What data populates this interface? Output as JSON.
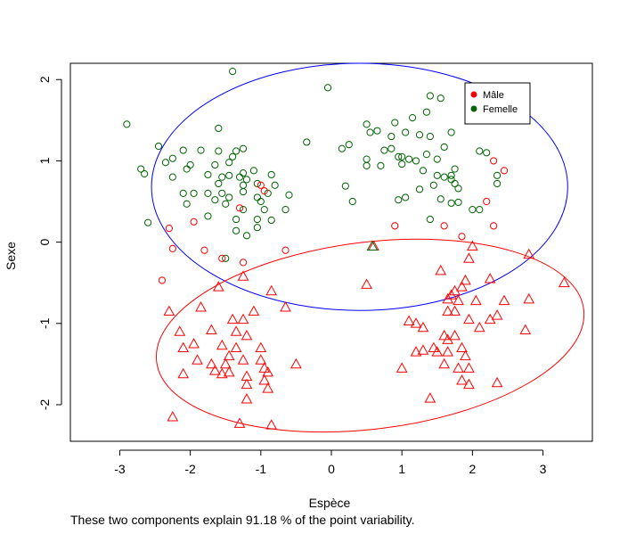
{
  "chart_data": {
    "type": "scatter",
    "xlabel": "Espèce",
    "ylabel": "Sexe",
    "caption": "These two components explain 91.18 % of the point variability.",
    "xlim": [
      -3.7,
      3.7
    ],
    "ylim": [
      -2.45,
      2.2
    ],
    "x_ticks": [
      -3,
      -2,
      -1,
      0,
      1,
      2,
      3
    ],
    "y_ticks": [
      -2,
      -1,
      0,
      1,
      2
    ],
    "legend": {
      "position": "top-right",
      "entries": [
        {
          "label": "Mâle",
          "color": "#ff0000"
        },
        {
          "label": "Femelle",
          "color": "#006400"
        }
      ]
    },
    "ellipses": [
      {
        "color": "#0000ff",
        "cx": 0.4,
        "cy": 0.68,
        "rx": 2.95,
        "ry": 1.52,
        "angle_deg": 0
      },
      {
        "color": "#ff0000",
        "cx": 0.55,
        "cy": -1.15,
        "rx": 3.05,
        "ry": 1.15,
        "angle_deg": 7
      }
    ],
    "series": [
      {
        "name": "Femelle",
        "marker": "circle",
        "color": "#006400",
        "points": [
          [
            -1.4,
            2.1
          ],
          [
            -2.9,
            1.45
          ],
          [
            -2.45,
            1.18
          ],
          [
            -1.6,
            1.4
          ],
          [
            -2.1,
            1.13
          ],
          [
            -1.85,
            1.13
          ],
          [
            -1.6,
            1.12
          ],
          [
            -1.35,
            1.12
          ],
          [
            -1.25,
            1.15
          ],
          [
            -1.4,
            1.05
          ],
          [
            -2.25,
            1.03
          ],
          [
            -2.0,
            0.95
          ],
          [
            -2.35,
            0.98
          ],
          [
            -2.05,
            0.9
          ],
          [
            -1.65,
            0.95
          ],
          [
            -1.45,
            0.98
          ],
          [
            -2.7,
            0.9
          ],
          [
            -2.65,
            0.84
          ],
          [
            -2.25,
            0.8
          ],
          [
            -1.75,
            0.83
          ],
          [
            -1.55,
            0.8
          ],
          [
            -1.3,
            0.8
          ],
          [
            -1.2,
            0.77
          ],
          [
            -1.1,
            0.88
          ],
          [
            -0.85,
            0.83
          ],
          [
            -1.25,
            0.85
          ],
          [
            -1.45,
            0.82
          ],
          [
            -1.05,
            0.72
          ],
          [
            -1.25,
            0.7
          ],
          [
            -0.8,
            0.7
          ],
          [
            -1.6,
            0.72
          ],
          [
            -2.1,
            0.6
          ],
          [
            -1.95,
            0.6
          ],
          [
            -1.75,
            0.6
          ],
          [
            -1.55,
            0.6
          ],
          [
            -1.45,
            0.55
          ],
          [
            -1.25,
            0.62
          ],
          [
            -1.05,
            0.55
          ],
          [
            -0.9,
            0.6
          ],
          [
            -0.6,
            0.58
          ],
          [
            -2.05,
            0.47
          ],
          [
            -1.65,
            0.52
          ],
          [
            -1.5,
            0.47
          ],
          [
            -1.0,
            0.5
          ],
          [
            -1.25,
            0.4
          ],
          [
            -0.95,
            0.4
          ],
          [
            -0.65,
            0.4
          ],
          [
            -1.75,
            0.32
          ],
          [
            -1.35,
            0.28
          ],
          [
            -1.05,
            0.28
          ],
          [
            -0.85,
            0.27
          ],
          [
            -2.6,
            0.24
          ],
          [
            -1.35,
            0.14
          ],
          [
            -1.05,
            0.18
          ],
          [
            -1.2,
            0.08
          ],
          [
            -1.5,
            -0.2
          ],
          [
            -0.35,
            1.23
          ],
          [
            -0.05,
            1.9
          ],
          [
            0.15,
            1.15
          ],
          [
            0.25,
            1.2
          ],
          [
            0.5,
            1.45
          ],
          [
            0.55,
            1.35
          ],
          [
            0.65,
            1.37
          ],
          [
            0.9,
            1.47
          ],
          [
            1.15,
            1.53
          ],
          [
            0.85,
            1.3
          ],
          [
            1.05,
            1.35
          ],
          [
            1.35,
            1.6
          ],
          [
            1.25,
            1.32
          ],
          [
            1.4,
            1.3
          ],
          [
            1.4,
            1.8
          ],
          [
            1.55,
            1.77
          ],
          [
            1.7,
            1.35
          ],
          [
            0.75,
            1.13
          ],
          [
            0.85,
            1.15
          ],
          [
            0.5,
            1.02
          ],
          [
            0.95,
            1.05
          ],
          [
            1.0,
            1.05
          ],
          [
            1.1,
            1.02
          ],
          [
            1.2,
            1.0
          ],
          [
            1.35,
            1.08
          ],
          [
            1.5,
            1.02
          ],
          [
            1.6,
            1.17
          ],
          [
            2.1,
            1.12
          ],
          [
            2.2,
            1.1
          ],
          [
            0.5,
            0.94
          ],
          [
            0.7,
            0.94
          ],
          [
            1.0,
            0.96
          ],
          [
            1.3,
            0.88
          ],
          [
            1.5,
            0.82
          ],
          [
            1.6,
            0.8
          ],
          [
            1.7,
            0.77
          ],
          [
            1.7,
            0.82
          ],
          [
            1.75,
            0.9
          ],
          [
            2.35,
            0.82
          ],
          [
            0.2,
            0.69
          ],
          [
            1.25,
            0.65
          ],
          [
            1.45,
            0.7
          ],
          [
            1.75,
            0.72
          ],
          [
            1.8,
            0.66
          ],
          [
            2.35,
            0.72
          ],
          [
            0.3,
            0.5
          ],
          [
            0.95,
            0.52
          ],
          [
            1.05,
            0.55
          ],
          [
            1.55,
            0.53
          ],
          [
            1.7,
            0.48
          ],
          [
            1.8,
            0.49
          ],
          [
            2.0,
            0.4
          ],
          [
            2.1,
            0.4
          ],
          [
            1.4,
            0.28
          ]
        ]
      },
      {
        "name": "Mâle",
        "marker": "circle",
        "color": "#ff0000",
        "points": [
          [
            -1.0,
            0.7
          ],
          [
            -0.95,
            0.63
          ],
          [
            -1.3,
            0.42
          ],
          [
            -1.95,
            0.25
          ],
          [
            -2.3,
            0.17
          ],
          [
            -2.25,
            -0.08
          ],
          [
            -1.8,
            -0.1
          ],
          [
            -1.55,
            -0.2
          ],
          [
            -1.25,
            -0.25
          ],
          [
            -0.65,
            -0.1
          ],
          [
            -2.4,
            -0.47
          ],
          [
            0.9,
            0.2
          ],
          [
            1.6,
            0.2
          ],
          [
            1.85,
            0.07
          ],
          [
            2.3,
            1.0
          ],
          [
            2.45,
            0.88
          ],
          [
            2.2,
            0.5
          ],
          [
            2.3,
            0.2
          ]
        ]
      },
      {
        "name": "Mâle",
        "marker": "triangle",
        "color": "#ff0000",
        "points": [
          [
            -1.6,
            -0.55
          ],
          [
            -1.25,
            -0.42
          ],
          [
            -0.85,
            -0.6
          ],
          [
            -0.65,
            -0.8
          ],
          [
            -1.1,
            -0.85
          ],
          [
            -1.4,
            -0.95
          ],
          [
            -1.25,
            -0.95
          ],
          [
            -2.3,
            -0.85
          ],
          [
            -1.85,
            -0.8
          ],
          [
            -1.35,
            -1.1
          ],
          [
            -2.15,
            -1.1
          ],
          [
            -1.7,
            -1.08
          ],
          [
            -1.2,
            -1.15
          ],
          [
            -1.95,
            -1.25
          ],
          [
            -2.1,
            -1.3
          ],
          [
            -1.55,
            -1.27
          ],
          [
            -1.35,
            -1.3
          ],
          [
            -1.0,
            -1.3
          ],
          [
            -1.45,
            -1.4
          ],
          [
            -1.9,
            -1.45
          ],
          [
            -1.7,
            -1.5
          ],
          [
            -1.5,
            -1.5
          ],
          [
            -1.25,
            -1.45
          ],
          [
            -1.0,
            -1.45
          ],
          [
            -0.5,
            -1.5
          ],
          [
            -1.65,
            -1.58
          ],
          [
            -1.45,
            -1.6
          ],
          [
            -1.2,
            -1.65
          ],
          [
            -0.95,
            -1.55
          ],
          [
            -0.9,
            -1.6
          ],
          [
            -2.1,
            -1.62
          ],
          [
            -1.55,
            -1.62
          ],
          [
            -1.2,
            -1.75
          ],
          [
            -0.95,
            -1.7
          ],
          [
            -0.9,
            -1.8
          ],
          [
            -1.2,
            -1.93
          ],
          [
            -2.25,
            -2.15
          ],
          [
            -1.3,
            -2.23
          ],
          [
            -0.85,
            -2.25
          ],
          [
            0.5,
            -0.52
          ],
          [
            0.6,
            -0.05
          ],
          [
            1.55,
            -0.35
          ],
          [
            1.75,
            -0.6
          ],
          [
            1.85,
            -0.55
          ],
          [
            1.9,
            -0.47
          ],
          [
            1.95,
            -0.2
          ],
          [
            2.0,
            -0.05
          ],
          [
            2.25,
            -0.45
          ],
          [
            2.8,
            -0.15
          ],
          [
            3.3,
            -0.5
          ],
          [
            1.65,
            -0.7
          ],
          [
            1.7,
            -0.65
          ],
          [
            1.8,
            -0.72
          ],
          [
            2.05,
            -0.72
          ],
          [
            2.45,
            -0.72
          ],
          [
            2.8,
            -0.7
          ],
          [
            1.65,
            -0.85
          ],
          [
            1.75,
            -0.85
          ],
          [
            1.95,
            -0.95
          ],
          [
            2.25,
            -0.95
          ],
          [
            2.35,
            -0.9
          ],
          [
            1.1,
            -0.97
          ],
          [
            1.2,
            -1.0
          ],
          [
            1.3,
            -1.05
          ],
          [
            1.6,
            -1.15
          ],
          [
            1.65,
            -1.2
          ],
          [
            1.75,
            -1.15
          ],
          [
            2.1,
            -1.05
          ],
          [
            2.75,
            -1.08
          ],
          [
            1.45,
            -1.3
          ],
          [
            1.5,
            -1.35
          ],
          [
            1.3,
            -1.33
          ],
          [
            1.2,
            -1.35
          ],
          [
            1.65,
            -1.35
          ],
          [
            1.85,
            -1.3
          ],
          [
            1.9,
            -1.4
          ],
          [
            1.0,
            -1.55
          ],
          [
            1.6,
            -1.5
          ],
          [
            1.8,
            -1.55
          ],
          [
            1.95,
            -1.55
          ],
          [
            1.85,
            -1.7
          ],
          [
            1.95,
            -1.75
          ],
          [
            2.35,
            -1.73
          ],
          [
            1.4,
            -1.92
          ]
        ]
      },
      {
        "name": "Femelle",
        "marker": "triangle",
        "color": "#006400",
        "points": [
          [
            0.58,
            -0.05
          ]
        ]
      }
    ]
  }
}
